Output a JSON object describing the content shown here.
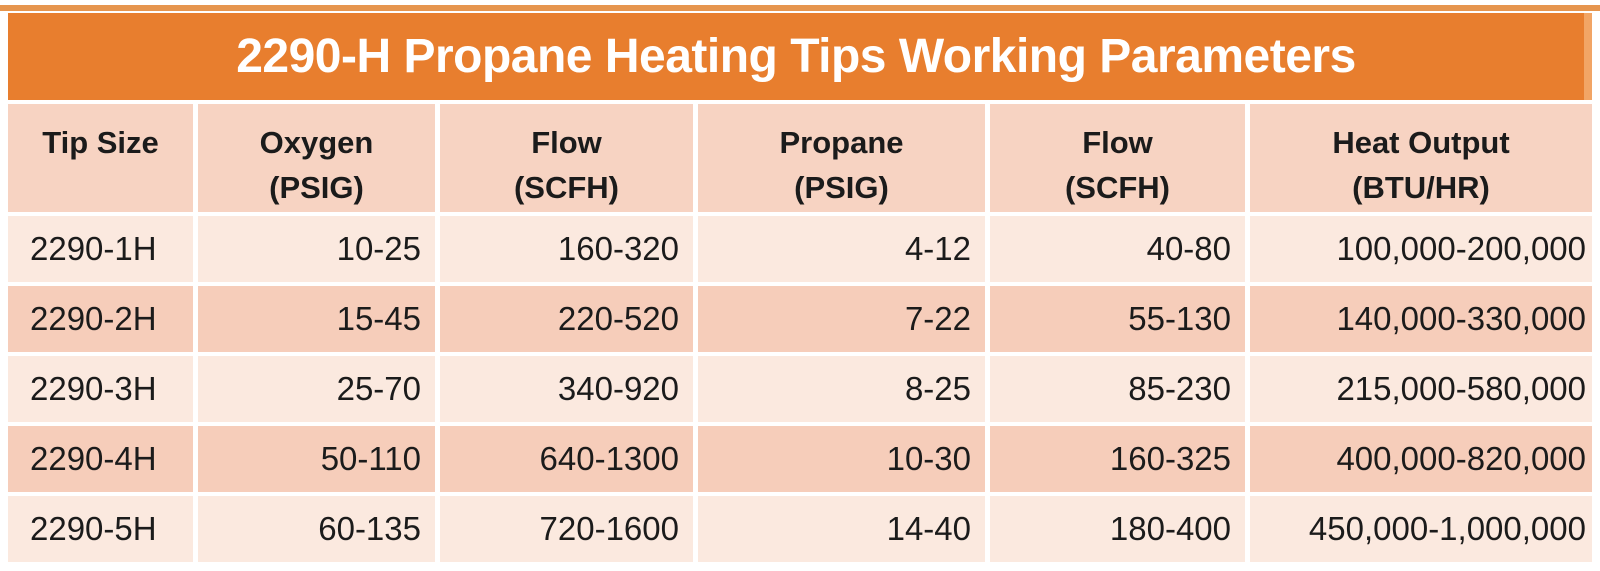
{
  "colors": {
    "accent_orange": "#e87e2e",
    "top_rule_orange": "#e6954e",
    "header_row_bg": "#f7d3c2",
    "row_light_bg": "#fbe9df",
    "row_dark_bg": "#f6cdba",
    "title_text": "#ffffff",
    "body_text": "#1b1b1b"
  },
  "table": {
    "title": "2290-H Propane Heating Tips Working Parameters",
    "columns": [
      {
        "name": "Tip Size",
        "unit": ""
      },
      {
        "name": "Oxygen",
        "unit": "(PSIG)"
      },
      {
        "name": "Flow",
        "unit": "(SCFH)"
      },
      {
        "name": "Propane",
        "unit": "(PSIG)"
      },
      {
        "name": "Flow",
        "unit": "(SCFH)"
      },
      {
        "name": "Heat Output",
        "unit": "(BTU/HR)"
      }
    ],
    "rows": [
      [
        "2290-1H",
        "10-25",
        "160-320",
        "4-12",
        "40-80",
        "100,000-200,000"
      ],
      [
        "2290-2H",
        "15-45",
        "220-520",
        "7-22",
        "55-130",
        "140,000-330,000"
      ],
      [
        "2290-3H",
        "25-70",
        "340-920",
        "8-25",
        "85-230",
        "215,000-580,000"
      ],
      [
        "2290-4H",
        "50-110",
        "640-1300",
        "10-30",
        "160-325",
        "400,000-820,000"
      ],
      [
        "2290-5H",
        "60-135",
        "720-1600",
        "14-40",
        "180-400",
        "450,000-1,000,000"
      ]
    ]
  }
}
